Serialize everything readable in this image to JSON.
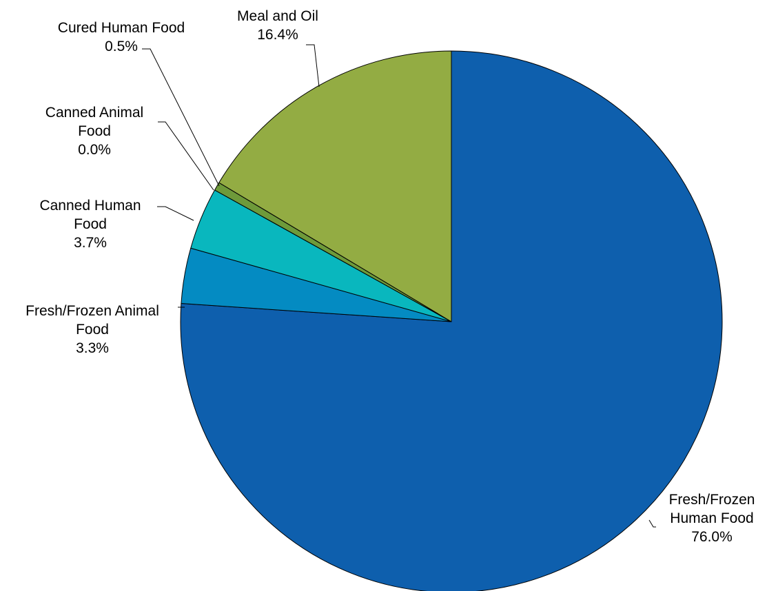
{
  "chart_data": {
    "type": "pie",
    "start": "12 o'clock",
    "direction": "clockwise",
    "slices": [
      {
        "name": "Fresh/Frozen Human Food",
        "label_lines": [
          "Fresh/Frozen",
          "Human Food"
        ],
        "value": 76.0,
        "value_label": "76.0%",
        "color": "#0E5FAD"
      },
      {
        "name": "Fresh/Frozen Animal Food",
        "label_lines": [
          "Fresh/Frozen Animal",
          "Food"
        ],
        "value": 3.3,
        "value_label": "3.3%",
        "color": "#048BC2"
      },
      {
        "name": "Canned Human Food",
        "label_lines": [
          "Canned Human",
          "Food"
        ],
        "value": 3.7,
        "value_label": "3.7%",
        "color": "#09B7BE"
      },
      {
        "name": "Canned Animal Food",
        "label_lines": [
          "Canned Animal",
          "Food"
        ],
        "value": 0.0,
        "value_label": "0.0%",
        "color": "#045E8C"
      },
      {
        "name": "Cured Human Food",
        "label_lines": [
          "Cured Human Food"
        ],
        "value": 0.5,
        "value_label": "0.5%",
        "color": "#6E9A3A"
      },
      {
        "name": "Meal and Oil",
        "label_lines": [
          "Meal and Oil"
        ],
        "value": 16.4,
        "value_label": "16.4%",
        "color": "#93AC43"
      }
    ]
  }
}
